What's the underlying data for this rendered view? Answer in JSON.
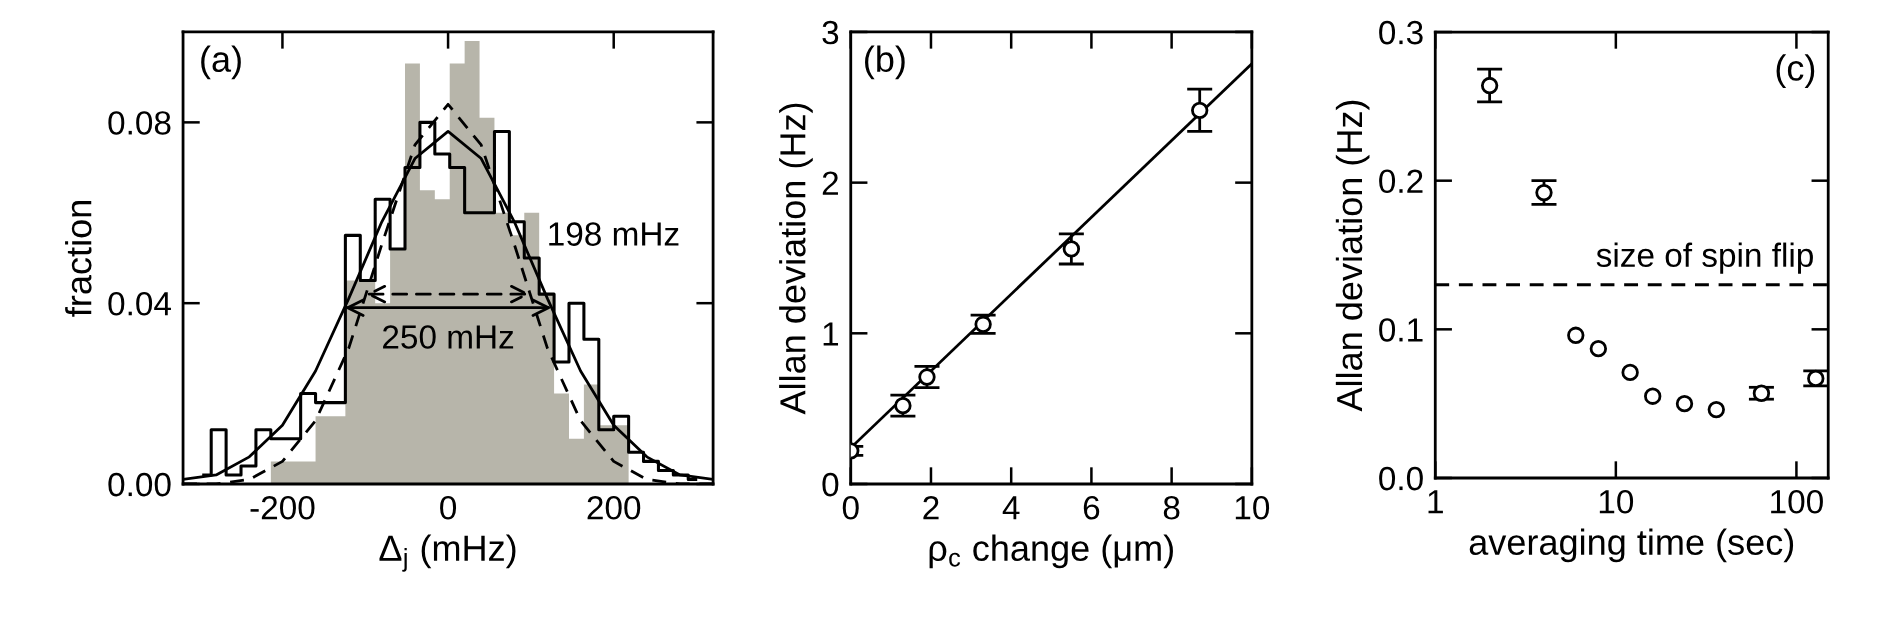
{
  "chart_data": [
    {
      "type": "histogram",
      "xlabel": "Δ$_{j}$ (mHz)",
      "ylabel": "fraction",
      "bins": [
        -304,
        -286,
        -268,
        -250,
        -232,
        -214,
        -196,
        -178,
        -160,
        -142,
        -124,
        -106,
        -88,
        -70,
        -52,
        -34,
        -16,
        2,
        20,
        38,
        56,
        74,
        92,
        110,
        128,
        146,
        164,
        182,
        200,
        218,
        236,
        254,
        272,
        290,
        308
      ],
      "series": [
        {
          "color": "#b7b5aa",
          "values": [
            0,
            0,
            0,
            0,
            0,
            0.005,
            0.005,
            0.005,
            0.015,
            0.015,
            0.045,
            0.045,
            0.04,
            0.052,
            0.093,
            0.065,
            0.063,
            0.093,
            0.098,
            0.081,
            0.06,
            0.055,
            0.06,
            0.042,
            0.02,
            0.01,
            0.022,
            0.013,
            0.013,
            0,
            0,
            0,
            0,
            0
          ]
        },
        {
          "type": "step",
          "color": "#000000",
          "x": [
            -295,
            -277,
            -259,
            -241,
            -223,
            -205,
            -187,
            -169,
            -151,
            -133,
            -115,
            -97,
            -79,
            -61,
            -43,
            -25,
            -7,
            11,
            29,
            47,
            65,
            83,
            101,
            119,
            137,
            155,
            173,
            191,
            209,
            227,
            245,
            263,
            281,
            299
          ],
          "values": [
            0.002,
            0.012,
            0.002,
            0.004,
            0.012,
            0.01,
            0.01,
            0.02,
            0.018,
            0.018,
            0.055,
            0.045,
            0.063,
            0.052,
            0.07,
            0.08,
            0.073,
            0.07,
            0.06,
            0.06,
            0.078,
            0.058,
            0.05,
            0.042,
            0.027,
            0.04,
            0.032,
            0.012,
            0.015,
            0.007,
            0.005,
            0.003,
            0.002,
            0.001
          ]
        },
        {
          "type": "line",
          "color": "#000000",
          "line_style": "dashed",
          "x": [
            -320,
            -280,
            -240,
            -200,
            -160,
            -120,
            -80,
            -40,
            0,
            40,
            80,
            120,
            160,
            200,
            240,
            280,
            320
          ],
          "values": [
            0.0,
            0.0,
            0.001,
            0.005,
            0.014,
            0.03,
            0.053,
            0.075,
            0.084,
            0.075,
            0.053,
            0.03,
            0.014,
            0.005,
            0.001,
            0.0,
            0.0
          ]
        },
        {
          "type": "line",
          "color": "#000000",
          "line_style": "solid",
          "x": [
            -320,
            -280,
            -240,
            -200,
            -160,
            -120,
            -80,
            -40,
            0,
            40,
            80,
            120,
            160,
            200,
            240,
            280,
            320
          ],
          "values": [
            0.001,
            0.002,
            0.006,
            0.013,
            0.025,
            0.041,
            0.058,
            0.072,
            0.078,
            0.072,
            0.058,
            0.041,
            0.025,
            0.013,
            0.006,
            0.002,
            0.001
          ]
        }
      ],
      "xlim": [
        -320,
        320
      ],
      "xticks": [
        -200,
        0,
        200
      ],
      "ylim": [
        0,
        0.1
      ],
      "yticks": [
        {
          "value": 0,
          "label": "0.00"
        },
        {
          "value": 0.04,
          "label": "0.04"
        },
        {
          "value": 0.08,
          "label": "0.08"
        }
      ],
      "annotations": [
        "(a)",
        {
          "text": "198 mHz",
          "x": 99,
          "y": 0.042
        },
        {
          "text": "250 mHz",
          "x": 125,
          "y": 0.039
        }
      ]
    },
    {
      "type": "scatter",
      "xlabel": "ρ$_{c}$ change (μm)",
      "ylabel": "Allan deviation (Hz)",
      "series": [
        {
          "color": "#000000",
          "marker": "circle",
          "x": [
            0,
            1.3,
            1.9,
            3.3,
            5.5,
            8.7
          ],
          "values": [
            0.22,
            0.52,
            0.71,
            1.06,
            1.56,
            2.48
          ],
          "errors": [
            0.03,
            0.07,
            0.07,
            0.06,
            0.1,
            0.14
          ]
        },
        {
          "type": "line",
          "color": "#000000",
          "line_style": "solid",
          "marker": "none",
          "x": [
            0,
            10
          ],
          "values": [
            0.24,
            2.79
          ]
        }
      ],
      "xlim": [
        0,
        10
      ],
      "xticks": [
        0,
        2,
        4,
        6,
        8,
        10
      ],
      "ylim": [
        0,
        3
      ],
      "yticks": [
        0,
        1,
        2,
        3
      ],
      "annotations": [
        "(b)"
      ]
    },
    {
      "type": "scatter",
      "xlabel": "averaging time (sec)",
      "ylabel": "Allan deviation (Hz)",
      "marker": "circle",
      "log": "x",
      "series": [
        {
          "color": "#000000",
          "x": [
            2,
            4,
            6,
            8,
            12,
            16,
            24,
            36,
            64,
            128
          ],
          "values": [
            0.264,
            0.192,
            0.096,
            0.087,
            0.071,
            0.055,
            0.05,
            0.046,
            0.057,
            0.067
          ],
          "errors": [
            0.011,
            0.008,
            null,
            null,
            null,
            null,
            null,
            null,
            0.004,
            0.005
          ]
        }
      ],
      "xlim": [
        1,
        150
      ],
      "xticks": [
        1,
        10,
        100
      ],
      "ylim": [
        0,
        0.3
      ],
      "yticks": [
        {
          "value": 0,
          "label": "0.0"
        },
        {
          "value": 0.1,
          "label": "0.1"
        },
        {
          "value": 0.2,
          "label": "0.2"
        },
        {
          "value": 0.3,
          "label": "0.3"
        }
      ],
      "ref_lines": [
        {
          "axis": "y",
          "value": 0.13,
          "label": "size of spin flip",
          "color": "#000000",
          "line_style": "dashed"
        }
      ],
      "annotations": [
        "(c)"
      ]
    }
  ]
}
